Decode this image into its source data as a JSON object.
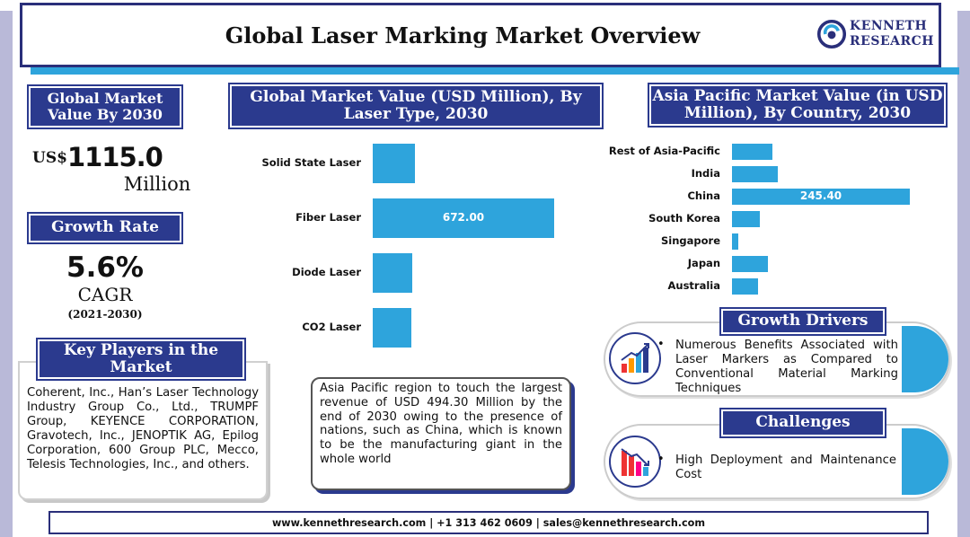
{
  "header": {
    "title": "Global Laser Marking Market Overview"
  },
  "logo": {
    "line1": "KENNETH",
    "line2": "RESEARCH"
  },
  "market_value": {
    "heading": "Global Market Value By 2030",
    "currency": "US$",
    "amount": "1115.0",
    "unit": "Million"
  },
  "growth": {
    "heading": "Growth Rate",
    "rate": "5.6%",
    "label": "CAGR",
    "period": "(2021-2030)"
  },
  "key_players": {
    "heading": "Key Players in the Market",
    "text": "Coherent, Inc., Han’s Laser Technology Industry Group Co., Ltd., TRUMPF Group, KEYENCE CORPORATION, Gravotech, Inc., JENOPTIK AG, Epilog Corporation, 600 Group PLC, Mecco, Telesis Technologies, Inc., and others."
  },
  "note": {
    "text": "Asia Pacific region to touch the largest revenue of USD 494.30 Million by the end of 2030 owing to the presence of nations, such as China, which is known to be the manufacturing giant in the whole world"
  },
  "growth_drivers": {
    "heading": "Growth Drivers",
    "text": "Numerous Benefits Associated with Laser Markers as Compared to Conventional Material Marking Techniques"
  },
  "challenges": {
    "heading": "Challenges",
    "text": "High Deployment and Maintenance Cost"
  },
  "footer": {
    "text": "www.kennethresearch.com | +1 313 462 0609 | sales@kennethresearch.com"
  },
  "colors": {
    "accent": "#2ea4dc",
    "navy": "#2b3a8e"
  },
  "chart_data": [
    {
      "type": "bar",
      "orientation": "horizontal",
      "title": "Global Market Value (USD Million), By Laser Type, 2030",
      "categories": [
        "Solid State Laser",
        "Fiber Laser",
        "Diode Laser",
        "CO2 Laser"
      ],
      "values": [
        155,
        672.0,
        145,
        142
      ],
      "value_labels": [
        "",
        "672.00",
        "",
        ""
      ],
      "xlim": [
        0,
        672
      ]
    },
    {
      "type": "bar",
      "orientation": "horizontal",
      "title": "Asia Pacific Market Value (in USD Million), By Country, 2030",
      "categories": [
        "Rest of Asia-Pacific",
        "India",
        "China",
        "South Korea",
        "Singapore",
        "Japan",
        "Australia"
      ],
      "values": [
        56,
        63,
        245.4,
        38,
        9,
        49,
        36
      ],
      "value_labels": [
        "",
        "",
        "245.40",
        "",
        "",
        "",
        ""
      ],
      "xlim": [
        0,
        245.4
      ]
    }
  ]
}
